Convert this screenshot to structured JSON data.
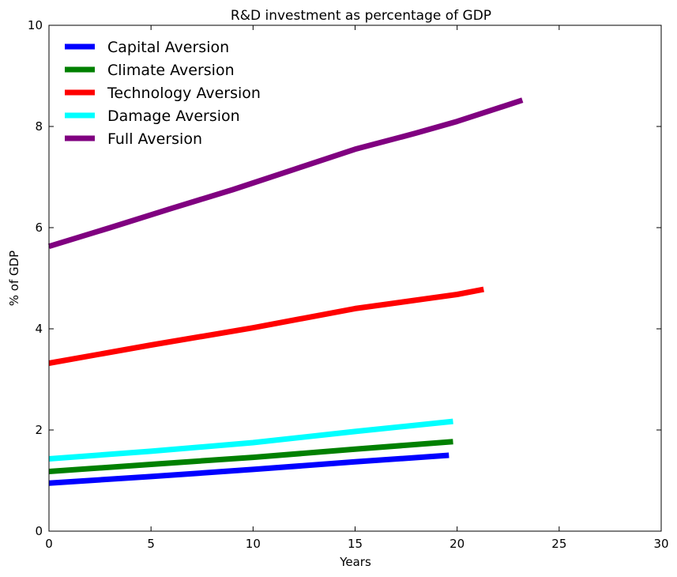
{
  "chart_data": {
    "type": "line",
    "title": "R&D investment as percentage of  GDP",
    "xlabel": "Years",
    "ylabel": "% of GDP",
    "xlim": [
      0,
      30
    ],
    "ylim": [
      0,
      10
    ],
    "xticks": [
      0,
      5,
      10,
      15,
      20,
      25,
      30
    ],
    "yticks": [
      0,
      2,
      4,
      6,
      8,
      10
    ],
    "grid": false,
    "legend_position": "top-left",
    "series": [
      {
        "name": "Capital Aversion",
        "color": "#0000ff",
        "x": [
          0,
          5,
          10,
          15,
          19.6
        ],
        "y": [
          0.95,
          1.08,
          1.22,
          1.37,
          1.5
        ]
      },
      {
        "name": "Climate Aversion",
        "color": "#008000",
        "x": [
          0,
          5,
          10,
          15,
          19.8
        ],
        "y": [
          1.18,
          1.32,
          1.46,
          1.62,
          1.77
        ]
      },
      {
        "name": "Technology Aversion",
        "color": "#ff0000",
        "x": [
          0,
          5,
          10,
          15,
          20,
          21.3
        ],
        "y": [
          3.32,
          3.68,
          4.02,
          4.4,
          4.68,
          4.78
        ]
      },
      {
        "name": "Damage Aversion",
        "color": "#00ffff",
        "x": [
          0,
          5,
          10,
          15,
          19.8
        ],
        "y": [
          1.43,
          1.58,
          1.75,
          1.97,
          2.17
        ]
      },
      {
        "name": "Full Aversion",
        "color": "#800080",
        "x": [
          0,
          3,
          6,
          9,
          12,
          15,
          18,
          20,
          23.2
        ],
        "y": [
          5.63,
          6.0,
          6.38,
          6.75,
          7.15,
          7.55,
          7.87,
          8.1,
          8.52
        ]
      }
    ]
  }
}
